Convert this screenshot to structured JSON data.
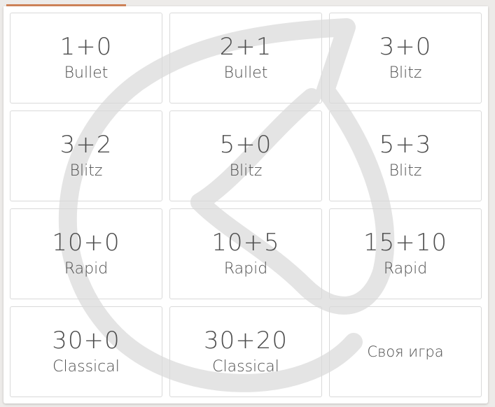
{
  "tabs": {
    "active_indicator_color": "#d0845a"
  },
  "watermark": {
    "icon": "lichess-knight-logo"
  },
  "pools": [
    {
      "clock": "1+0",
      "perf": "Bullet"
    },
    {
      "clock": "2+1",
      "perf": "Bullet"
    },
    {
      "clock": "3+0",
      "perf": "Blitz"
    },
    {
      "clock": "3+2",
      "perf": "Blitz"
    },
    {
      "clock": "5+0",
      "perf": "Blitz"
    },
    {
      "clock": "5+3",
      "perf": "Blitz"
    },
    {
      "clock": "10+0",
      "perf": "Rapid"
    },
    {
      "clock": "10+5",
      "perf": "Rapid"
    },
    {
      "clock": "15+10",
      "perf": "Rapid"
    },
    {
      "clock": "30+0",
      "perf": "Classical"
    },
    {
      "clock": "30+20",
      "perf": "Classical"
    }
  ],
  "custom": {
    "label": "Своя игра"
  }
}
